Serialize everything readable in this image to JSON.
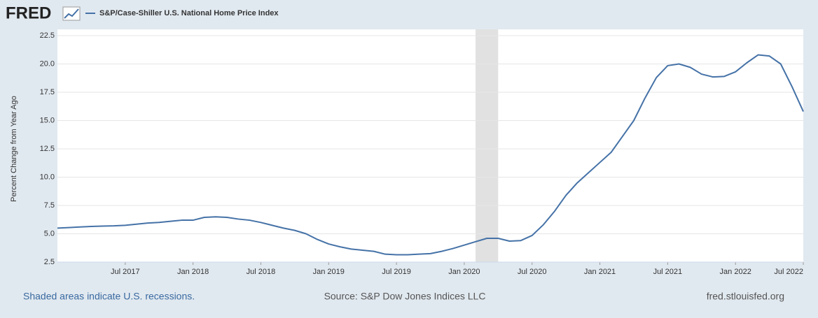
{
  "brand": "FRED",
  "footer": {
    "left": "Shaded areas indicate U.S. recessions.",
    "center": "Source: S&P Dow Jones Indices LLC",
    "right": "fred.stlouisfed.org"
  },
  "chart_data": {
    "type": "line",
    "ylabel": "Percent Change from Year Ago",
    "x": [
      "2017-01",
      "2017-02",
      "2017-03",
      "2017-04",
      "2017-05",
      "2017-06",
      "2017-07",
      "2017-08",
      "2017-09",
      "2017-10",
      "2017-11",
      "2017-12",
      "2018-01",
      "2018-02",
      "2018-03",
      "2018-04",
      "2018-05",
      "2018-06",
      "2018-07",
      "2018-08",
      "2018-09",
      "2018-10",
      "2018-11",
      "2018-12",
      "2019-01",
      "2019-02",
      "2019-03",
      "2019-04",
      "2019-05",
      "2019-06",
      "2019-07",
      "2019-08",
      "2019-09",
      "2019-10",
      "2019-11",
      "2019-12",
      "2020-01",
      "2020-02",
      "2020-03",
      "2020-04",
      "2020-05",
      "2020-06",
      "2020-07",
      "2020-08",
      "2020-09",
      "2020-10",
      "2020-11",
      "2020-12",
      "2021-01",
      "2021-02",
      "2021-03",
      "2021-04",
      "2021-05",
      "2021-06",
      "2021-07",
      "2021-08",
      "2021-09",
      "2021-10",
      "2021-11",
      "2021-12",
      "2022-01",
      "2022-02",
      "2022-03",
      "2022-04",
      "2022-05",
      "2022-06",
      "2022-07"
    ],
    "series": [
      {
        "name": "S&P/Case-Shiller U.S. National Home Price Index",
        "color": "#4572a7",
        "values": [
          5.5,
          5.55,
          5.6,
          5.65,
          5.68,
          5.7,
          5.75,
          5.85,
          5.95,
          6.0,
          6.1,
          6.2,
          6.2,
          6.45,
          6.5,
          6.45,
          6.3,
          6.2,
          6.0,
          5.75,
          5.5,
          5.3,
          5.0,
          4.5,
          4.1,
          3.85,
          3.65,
          3.55,
          3.45,
          3.2,
          3.15,
          3.15,
          3.2,
          3.25,
          3.45,
          3.7,
          4.0,
          4.3,
          4.6,
          4.6,
          4.35,
          4.4,
          4.85,
          5.8,
          7.0,
          8.4,
          9.5,
          10.4,
          11.3,
          12.2,
          13.6,
          15.0,
          17.0,
          18.8,
          19.85,
          20.0,
          19.7,
          19.1,
          18.85,
          18.9,
          19.3,
          20.1,
          20.8,
          20.7,
          20.0,
          18.0,
          15.8
        ]
      }
    ],
    "xlim": [
      "2017-01",
      "2022-07"
    ],
    "xticks": [
      {
        "value": "2017-07",
        "label": "Jul 2017"
      },
      {
        "value": "2018-01",
        "label": "Jan 2018"
      },
      {
        "value": "2018-07",
        "label": "Jul 2018"
      },
      {
        "value": "2019-01",
        "label": "Jan 2019"
      },
      {
        "value": "2019-07",
        "label": "Jul 2019"
      },
      {
        "value": "2020-01",
        "label": "Jan 2020"
      },
      {
        "value": "2020-07",
        "label": "Jul 2020"
      },
      {
        "value": "2021-01",
        "label": "Jan 2021"
      },
      {
        "value": "2021-07",
        "label": "Jul 2021"
      },
      {
        "value": "2022-01",
        "label": "Jan 2022"
      },
      {
        "value": "2022-07",
        "label": "Jul 2022"
      }
    ],
    "ylim": [
      2.5,
      22.5
    ],
    "yticks": [
      2.5,
      {
        "value": 5,
        "label": "5.0"
      },
      7.5,
      {
        "value": 10,
        "label": "10.0"
      },
      12.5,
      {
        "value": 15,
        "label": "15.0"
      },
      17.5,
      {
        "value": 20,
        "label": "20.0"
      },
      22.5
    ],
    "grid": true,
    "recessions": [
      [
        "2020-02",
        "2020-04"
      ]
    ],
    "recession_color": "#e1e1e1"
  }
}
